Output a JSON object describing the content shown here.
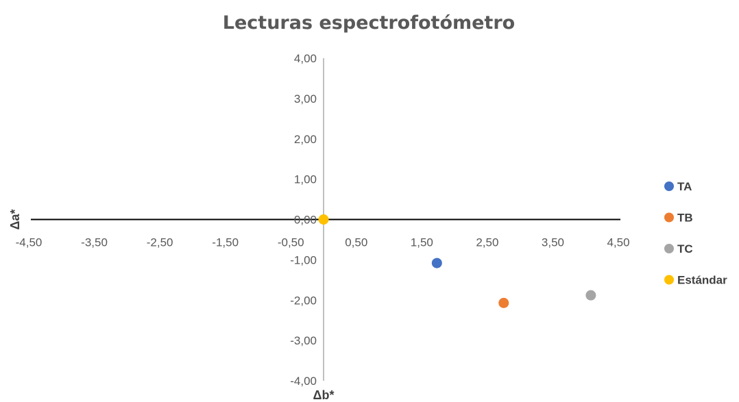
{
  "chart_data": {
    "type": "scatter",
    "title": "Lecturas espectrofotómetro",
    "xlabel": "Δb*",
    "ylabel": "Δa*",
    "xlim": [
      -4.5,
      4.5
    ],
    "ylim": [
      -4.0,
      4.0
    ],
    "x_ticks": [
      "-4,50",
      "-3,50",
      "-2,50",
      "-1,50",
      "-0,50",
      "0,50",
      "1,50",
      "2,50",
      "3,50",
      "4,50"
    ],
    "y_ticks": [
      "4,00",
      "3,00",
      "2,00",
      "1,00",
      "0,00",
      "-1,00",
      "-2,00",
      "-3,00",
      "-4,00"
    ],
    "grid": false,
    "legend_position": "right",
    "series": [
      {
        "name": "TA",
        "color": "#4472C4",
        "x": [
          1.73
        ],
        "y": [
          -1.08
        ]
      },
      {
        "name": "TB",
        "color": "#ED7D31",
        "x": [
          2.75
        ],
        "y": [
          -2.07
        ]
      },
      {
        "name": "TC",
        "color": "#A5A5A5",
        "x": [
          4.08
        ],
        "y": [
          -1.88
        ]
      },
      {
        "name": "Estándar",
        "color": "#FFC000",
        "x": [
          0.0
        ],
        "y": [
          0.0
        ]
      }
    ]
  }
}
